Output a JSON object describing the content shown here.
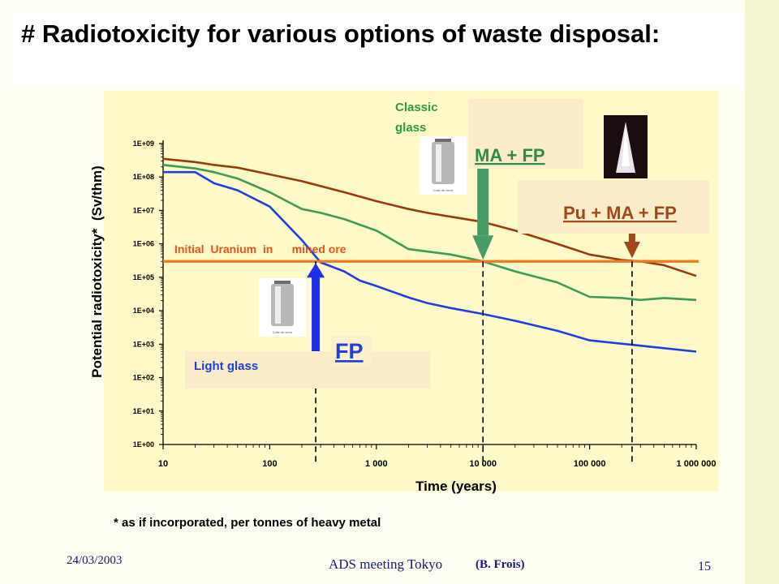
{
  "slide": {
    "title": "# Radiotoxicity for various options of waste disposal:",
    "footnote": "* as if incorporated, per tonnes of heavy metal",
    "footer": {
      "date": "24/03/2003",
      "meeting": "ADS meeting Tokyo",
      "author": "(B. Frois)",
      "page": "15"
    }
  },
  "colors": {
    "panel": "#fdf9c8",
    "reference": "#f07a1e",
    "brown": "#9a3a0c",
    "green": "#3f9a55",
    "blue": "#1e3ede",
    "arrow_green": "#4a9a68",
    "arrow_blue": "#1e2fe8",
    "arrow_brown": "#a0481c"
  },
  "chart_data": {
    "type": "line",
    "xlabel": "Time (years)",
    "ylabel": "Potential radiotoxicity*  (Sv/thm)",
    "x_scale": "log",
    "y_scale": "log",
    "xlim": [
      10,
      1000000
    ],
    "ylim": [
      1,
      1000000000
    ],
    "x_ticks": [
      {
        "value": 10,
        "label": "10"
      },
      {
        "value": 100,
        "label": "100"
      },
      {
        "value": 1000,
        "label": "1 000"
      },
      {
        "value": 10000,
        "label": "10 000"
      },
      {
        "value": 100000,
        "label": "100 000"
      },
      {
        "value": 1000000,
        "label": "1 000 000"
      }
    ],
    "y_ticks": [
      {
        "value": 1,
        "label": "1E+00"
      },
      {
        "value": 10,
        "label": "1E+01"
      },
      {
        "value": 100,
        "label": "1E+02"
      },
      {
        "value": 1000,
        "label": "1E+03"
      },
      {
        "value": 10000,
        "label": "1E+04"
      },
      {
        "value": 100000,
        "label": "1E+05"
      },
      {
        "value": 1000000,
        "label": "1E+06"
      },
      {
        "value": 10000000,
        "label": "1E+07"
      },
      {
        "value": 100000000,
        "label": "1E+08"
      },
      {
        "value": 1000000000,
        "label": "1E+09"
      }
    ],
    "series": [
      {
        "name": "Pu + MA + FP",
        "color": "#9a3a0c",
        "points": [
          [
            10,
            350000000
          ],
          [
            20,
            280000000
          ],
          [
            30,
            230000000
          ],
          [
            50,
            190000000
          ],
          [
            100,
            120000000
          ],
          [
            200,
            75000000
          ],
          [
            500,
            35000000
          ],
          [
            1000,
            19000000
          ],
          [
            2000,
            11000000
          ],
          [
            3000,
            8500000
          ],
          [
            5000,
            6500000
          ],
          [
            10000,
            4500000
          ],
          [
            20000,
            2500000
          ],
          [
            50000,
            1000000
          ],
          [
            100000,
            480000
          ],
          [
            200000,
            330000
          ],
          [
            300000,
            300000
          ],
          [
            500000,
            230000
          ],
          [
            1000000,
            110000
          ]
        ]
      },
      {
        "name": "MA + FP",
        "color": "#3f9a55",
        "points": [
          [
            10,
            230000000
          ],
          [
            20,
            180000000
          ],
          [
            30,
            140000000
          ],
          [
            50,
            90000000
          ],
          [
            100,
            35000000
          ],
          [
            200,
            11000000
          ],
          [
            300,
            8500000
          ],
          [
            500,
            5500000
          ],
          [
            1000,
            2500000
          ],
          [
            2000,
            700000
          ],
          [
            5000,
            480000
          ],
          [
            10000,
            300000
          ],
          [
            20000,
            150000
          ],
          [
            50000,
            70000
          ],
          [
            100000,
            26000
          ],
          [
            200000,
            24000
          ],
          [
            300000,
            21000
          ],
          [
            500000,
            24000
          ],
          [
            1000000,
            21000
          ]
        ]
      },
      {
        "name": "FP",
        "color": "#1e3ede",
        "points": [
          [
            10,
            140000000
          ],
          [
            20,
            140000000
          ],
          [
            30,
            65000000
          ],
          [
            50,
            40000000
          ],
          [
            100,
            13000000
          ],
          [
            200,
            1300000
          ],
          [
            300,
            280000
          ],
          [
            500,
            150000
          ],
          [
            700,
            80000
          ],
          [
            1000,
            55000
          ],
          [
            2000,
            25000
          ],
          [
            3000,
            17000
          ],
          [
            5000,
            12000
          ],
          [
            10000,
            8000
          ],
          [
            20000,
            5000
          ],
          [
            50000,
            2500
          ],
          [
            100000,
            1300
          ],
          [
            300000,
            900
          ],
          [
            1000000,
            600
          ]
        ]
      }
    ],
    "reference_line": {
      "label": "Initial  Uranium  in      mined ore",
      "y": 300000,
      "color": "#f07a1e"
    },
    "markers": [
      {
        "x": 270,
        "label": "FP"
      },
      {
        "x": 10000,
        "label": "MA + FP"
      },
      {
        "x": 250000,
        "label": "Pu + MA + FP"
      }
    ],
    "annotations": {
      "light_glass": "Light glass",
      "classic_glass": "Classic glass",
      "fp": "FP",
      "ma_fp": "MA + FP",
      "pu_ma_fp": "Pu + MA + FP",
      "canister_caption": "Colis de verre"
    }
  }
}
